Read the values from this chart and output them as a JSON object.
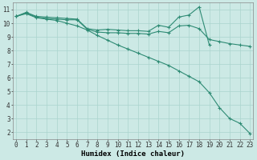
{
  "line1_x": [
    0,
    1,
    2,
    3,
    4,
    5,
    6,
    7,
    8,
    9,
    10,
    11,
    12,
    13,
    14,
    15,
    16,
    17,
    18,
    19
  ],
  "line1_y": [
    10.5,
    10.8,
    10.5,
    10.45,
    10.4,
    10.35,
    10.3,
    9.6,
    9.5,
    9.55,
    9.5,
    9.45,
    9.45,
    9.4,
    9.85,
    9.7,
    10.45,
    10.6,
    11.2,
    8.4
  ],
  "line2_x": [
    0,
    1,
    2,
    3,
    4,
    5,
    6,
    7,
    8,
    9,
    10,
    11,
    12,
    13,
    14,
    15,
    16,
    17,
    18,
    19,
    20,
    21,
    22,
    23
  ],
  "line2_y": [
    10.5,
    10.75,
    10.45,
    10.35,
    10.3,
    10.25,
    10.25,
    9.55,
    9.35,
    9.3,
    9.3,
    9.25,
    9.25,
    9.2,
    9.4,
    9.3,
    9.8,
    9.85,
    9.6,
    8.8,
    8.65,
    8.5,
    8.4,
    8.3
  ],
  "line3_x": [
    0,
    1,
    2,
    3,
    4,
    5,
    6,
    7,
    8,
    9,
    10,
    11,
    12,
    13,
    14,
    15,
    16,
    17,
    18,
    19,
    20,
    21,
    22,
    23
  ],
  "line3_y": [
    10.5,
    10.7,
    10.4,
    10.3,
    10.2,
    10.0,
    9.8,
    9.5,
    9.1,
    8.75,
    8.4,
    8.1,
    7.8,
    7.5,
    7.2,
    6.9,
    6.5,
    6.1,
    5.7,
    4.9,
    3.8,
    3.0,
    2.65,
    1.9
  ],
  "line_color": "#2e8b74",
  "marker": "+",
  "markersize": 3,
  "linewidth": 0.8,
  "xlabel": "Humidex (Indice chaleur)",
  "xtick_labels": [
    "0",
    "1",
    "2",
    "3",
    "4",
    "5",
    "6",
    "7",
    "8",
    "9",
    "10",
    "11",
    "12",
    "13",
    "14",
    "15",
    "16",
    "17",
    "18",
    "19",
    "20",
    "21",
    "22",
    "23"
  ],
  "xticks": [
    0,
    1,
    2,
    3,
    4,
    5,
    6,
    7,
    8,
    9,
    10,
    11,
    12,
    13,
    14,
    15,
    16,
    17,
    18,
    19,
    20,
    21,
    22,
    23
  ],
  "xlim": [
    -0.3,
    23.3
  ],
  "yticks": [
    2,
    3,
    4,
    5,
    6,
    7,
    8,
    9,
    10,
    11
  ],
  "ylim": [
    1.5,
    11.5
  ],
  "bg_color": "#cce9e5",
  "grid_color": "#aad4ce",
  "tick_fontsize": 5.5,
  "xlabel_fontsize": 6.5
}
